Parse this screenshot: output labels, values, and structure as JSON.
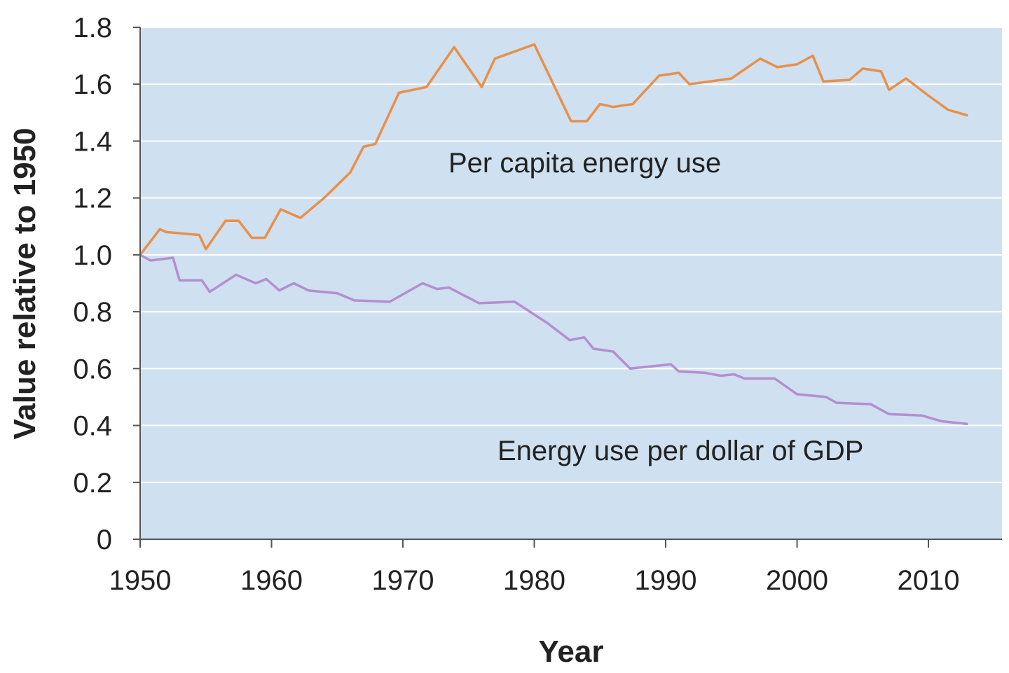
{
  "chart_data": {
    "type": "line",
    "xlabel": "Year",
    "ylabel": "Value relative to 1950",
    "xlim": [
      1950,
      2015.6
    ],
    "ylim": [
      0,
      1.8
    ],
    "xticks": [
      1950,
      1960,
      1970,
      1980,
      1990,
      2000,
      2010
    ],
    "yticks": [
      0,
      0.2,
      0.4,
      0.6,
      0.8,
      {
        "value": 1,
        "label": "1.0"
      },
      1.2,
      1.4,
      1.6,
      1.8
    ],
    "grid": true,
    "background": "#cfe0f0",
    "series": [
      {
        "name": "Per capita energy use",
        "color": "#e8904a",
        "x": [
          1950,
          1951.5,
          1952,
          1954.5,
          1955,
          1956.5,
          1957.5,
          1958.5,
          1959.5,
          1960.7,
          1962.2,
          1964,
          1966,
          1967,
          1967.9,
          1969.7,
          1971.8,
          1973.9,
          1976,
          1977,
          1980,
          1982.8,
          1984,
          1985,
          1986,
          1987.5,
          1989.5,
          1991,
          1991.8,
          1995,
          1997.2,
          1998.5,
          2000,
          2001.2,
          2002,
          2004,
          2005,
          2006.4,
          2007,
          2008.3,
          2010,
          2011.5,
          2013
        ],
        "values": [
          1.0,
          1.09,
          1.08,
          1.07,
          1.02,
          1.12,
          1.12,
          1.06,
          1.06,
          1.16,
          1.13,
          1.2,
          1.29,
          1.38,
          1.39,
          1.57,
          1.59,
          1.73,
          1.59,
          1.69,
          1.74,
          1.47,
          1.47,
          1.53,
          1.52,
          1.53,
          1.63,
          1.64,
          1.6,
          1.62,
          1.69,
          1.66,
          1.67,
          1.7,
          1.61,
          1.615,
          1.655,
          1.645,
          1.58,
          1.62,
          1.56,
          1.51,
          1.49
        ]
      },
      {
        "name": "Energy use per dollar of GDP",
        "color": "#b48fd0",
        "x": [
          1950,
          1950.8,
          1952.5,
          1953,
          1954.7,
          1955.3,
          1957.3,
          1958.8,
          1959.6,
          1960.6,
          1961.7,
          1962.8,
          1965,
          1966.3,
          1969,
          1971.5,
          1972.6,
          1973.5,
          1975.8,
          1978.5,
          1980,
          1981,
          1982.7,
          1983.8,
          1984.5,
          1986,
          1987.3,
          1990.4,
          1991,
          1993,
          1994.2,
          1995.2,
          1996,
          1998.3,
          2000,
          2002.2,
          2003,
          2005.6,
          2007,
          2009.5,
          2011,
          2013
        ],
        "values": [
          1.0,
          0.98,
          0.99,
          0.91,
          0.91,
          0.87,
          0.93,
          0.9,
          0.915,
          0.875,
          0.9,
          0.875,
          0.865,
          0.84,
          0.835,
          0.9,
          0.88,
          0.885,
          0.83,
          0.835,
          0.79,
          0.76,
          0.7,
          0.71,
          0.67,
          0.66,
          0.6,
          0.615,
          0.59,
          0.585,
          0.575,
          0.58,
          0.565,
          0.565,
          0.51,
          0.5,
          0.48,
          0.475,
          0.44,
          0.435,
          0.415,
          0.405
        ]
      }
    ]
  }
}
